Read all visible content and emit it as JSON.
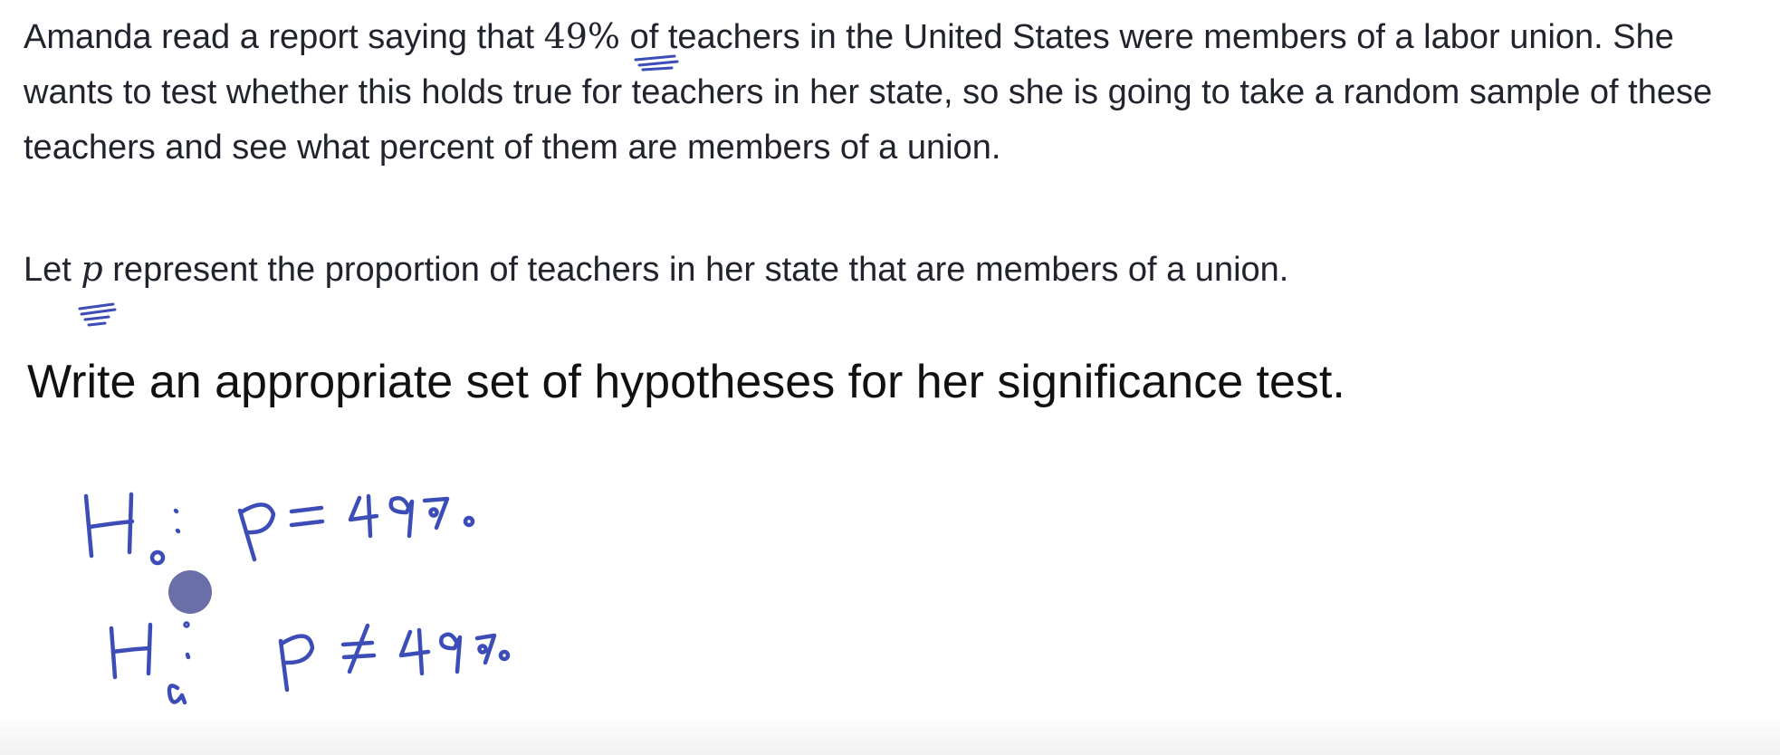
{
  "problem": {
    "part1": "Amanda read a report saying that ",
    "percent": "49%",
    "part2": " of teachers in the United States were members of a labor union. She wants to test whether this holds true for teachers in her state, so she is going to take a random sample of these teachers and see what percent of them are members of a union."
  },
  "let_line": {
    "prefix": "Let ",
    "variable": "p",
    "suffix": " represent the proportion of teachers in her state that are members of a union."
  },
  "question": "Write an appropriate set of hypotheses for her significance test.",
  "handwriting": {
    "null_hypothesis": "H₀: p = 49%",
    "alternative_hypothesis": "Hₐ: p ≠ 49%"
  },
  "colors": {
    "ink": "#3d4db8",
    "cursor": "#6a6fa7",
    "text": "#21242c"
  }
}
